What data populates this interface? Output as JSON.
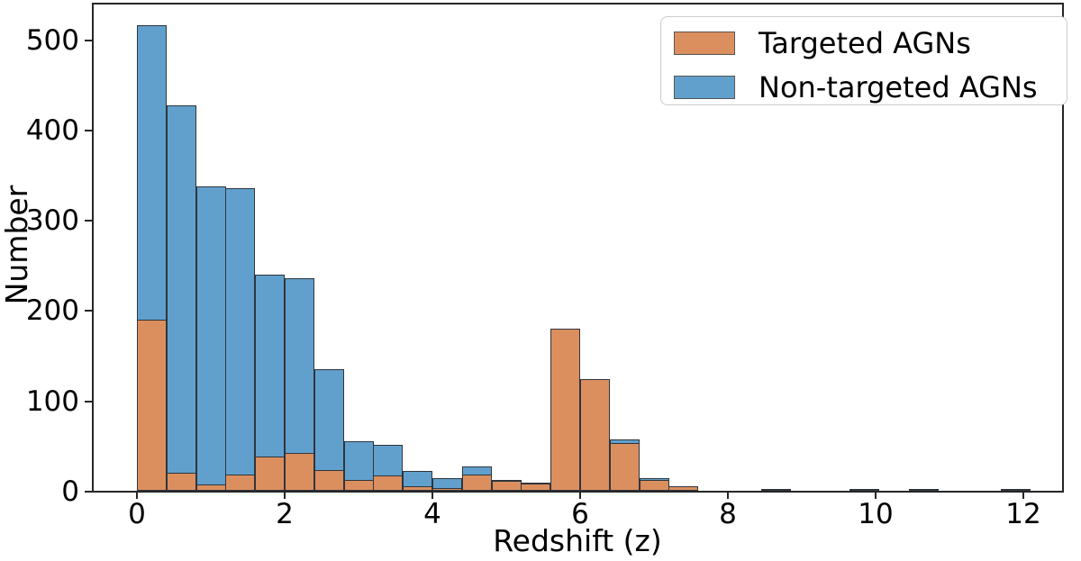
{
  "figure": {
    "background": "#ffffff",
    "plot_border_color": "#262626",
    "text_color": "#000000",
    "legend_border_color": "#cccccc"
  },
  "chart_data": {
    "type": "histogram",
    "title": "",
    "xlabel": "Redshift (z)",
    "ylabel": "Number",
    "xlim": [
      -0.61,
      12.55
    ],
    "ylim": [
      0,
      542
    ],
    "xticks": [
      0,
      2,
      4,
      6,
      8,
      10,
      12
    ],
    "yticks": [
      0,
      100,
      200,
      300,
      400,
      500
    ],
    "grid": false,
    "legend_position": "upper right",
    "bin_width": 0.4,
    "edge_color": "#2e353d",
    "series": [
      {
        "name": "Targeted AGNs",
        "color": "#dc8f5e",
        "edge_color": "#2e353d",
        "bins": [
          {
            "x": 0.0,
            "n": 190
          },
          {
            "x": 0.4,
            "n": 20
          },
          {
            "x": 0.8,
            "n": 7
          },
          {
            "x": 1.2,
            "n": 18
          },
          {
            "x": 1.6,
            "n": 38
          },
          {
            "x": 2.0,
            "n": 42
          },
          {
            "x": 2.4,
            "n": 23
          },
          {
            "x": 2.8,
            "n": 12
          },
          {
            "x": 3.2,
            "n": 17
          },
          {
            "x": 3.6,
            "n": 5
          },
          {
            "x": 4.0,
            "n": 3
          },
          {
            "x": 4.4,
            "n": 18
          },
          {
            "x": 4.8,
            "n": 11
          },
          {
            "x": 5.2,
            "n": 8
          },
          {
            "x": 5.6,
            "n": 180
          },
          {
            "x": 6.0,
            "n": 124
          },
          {
            "x": 6.4,
            "n": 53
          },
          {
            "x": 6.8,
            "n": 12
          },
          {
            "x": 7.2,
            "n": 5
          }
        ]
      },
      {
        "name": "Non-targeted AGNs",
        "color": "#61a0cc",
        "edge_color": "#2e353d",
        "bins": [
          {
            "x": 0.0,
            "n": 517
          },
          {
            "x": 0.4,
            "n": 428
          },
          {
            "x": 0.8,
            "n": 338
          },
          {
            "x": 1.2,
            "n": 336
          },
          {
            "x": 1.6,
            "n": 240
          },
          {
            "x": 2.0,
            "n": 236
          },
          {
            "x": 2.4,
            "n": 135
          },
          {
            "x": 2.8,
            "n": 55
          },
          {
            "x": 3.2,
            "n": 51
          },
          {
            "x": 3.6,
            "n": 22
          },
          {
            "x": 4.0,
            "n": 14
          },
          {
            "x": 4.4,
            "n": 27
          },
          {
            "x": 4.8,
            "n": 12
          },
          {
            "x": 5.2,
            "n": 9
          },
          {
            "x": 6.4,
            "n": 57
          },
          {
            "x": 6.8,
            "n": 14
          },
          {
            "x": 8.45,
            "n": 2
          },
          {
            "x": 9.65,
            "n": 2
          },
          {
            "x": 10.45,
            "n": 2
          },
          {
            "x": 11.7,
            "n": 2
          }
        ]
      }
    ]
  }
}
